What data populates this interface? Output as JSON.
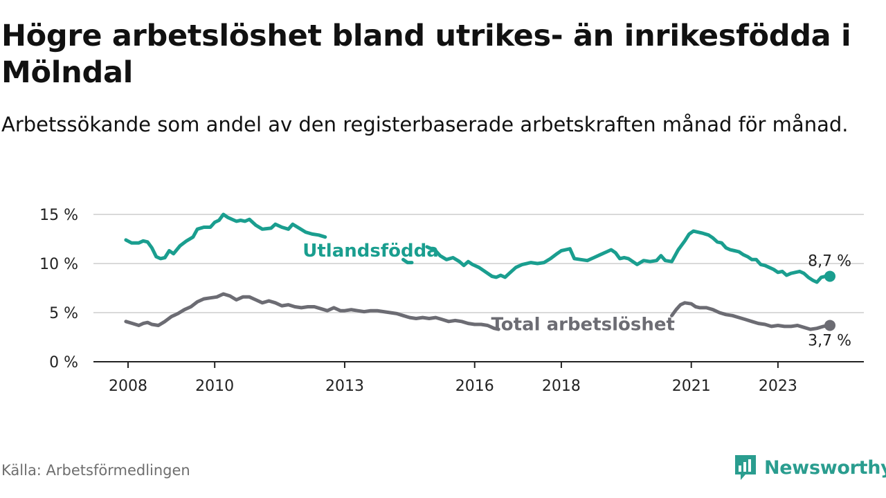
{
  "title": "Högre arbetslöshet bland utrikes- än inrikesfödda i Mölndal",
  "subtitle": "Arbetssökande som andel av den registerbaserade arbetskraften månad för månad.",
  "source": "Källa: Arbetsförmedlingen",
  "brand": {
    "name": "Newsworthy",
    "icon": "newsworthy-logo-icon",
    "color": "#2a9d8f"
  },
  "chart_data": {
    "type": "line",
    "title": "Högre arbetslöshet bland utrikes- än inrikesfödda i Mölndal",
    "xlabel": "",
    "ylabel": "",
    "ylim": [
      0,
      15
    ],
    "xlim": [
      2007.6,
      2024.3
    ],
    "grid": true,
    "y_ticks": [
      {
        "value": 0,
        "label": "0 %"
      },
      {
        "value": 5,
        "label": "5 %"
      },
      {
        "value": 10,
        "label": "10 %"
      },
      {
        "value": 15,
        "label": "15 %"
      }
    ],
    "x_ticks": [
      {
        "value": 2008,
        "label": "2008"
      },
      {
        "value": 2010,
        "label": "2010"
      },
      {
        "value": 2013,
        "label": "2013"
      },
      {
        "value": 2016,
        "label": "2016"
      },
      {
        "value": 2018,
        "label": "2018"
      },
      {
        "value": 2021,
        "label": "2021"
      },
      {
        "value": 2023,
        "label": "2023"
      }
    ],
    "series": [
      {
        "name": "Utlandsfödda",
        "color": "#1a9e8f",
        "end_label": "8,7 %",
        "points": [
          [
            2007.95,
            12.4
          ],
          [
            2008.08,
            12.1
          ],
          [
            2008.25,
            12.1
          ],
          [
            2008.35,
            12.3
          ],
          [
            2008.45,
            12.2
          ],
          [
            2008.55,
            11.6
          ],
          [
            2008.65,
            10.7
          ],
          [
            2008.75,
            10.5
          ],
          [
            2008.85,
            10.6
          ],
          [
            2008.95,
            11.3
          ],
          [
            2009.05,
            11.0
          ],
          [
            2009.2,
            11.8
          ],
          [
            2009.35,
            12.3
          ],
          [
            2009.5,
            12.7
          ],
          [
            2009.6,
            13.5
          ],
          [
            2009.75,
            13.7
          ],
          [
            2009.9,
            13.7
          ],
          [
            2010.0,
            14.2
          ],
          [
            2010.1,
            14.4
          ],
          [
            2010.2,
            15.0
          ],
          [
            2010.3,
            14.7
          ],
          [
            2010.4,
            14.5
          ],
          [
            2010.5,
            14.3
          ],
          [
            2010.6,
            14.4
          ],
          [
            2010.7,
            14.3
          ],
          [
            2010.8,
            14.5
          ],
          [
            2010.95,
            13.9
          ],
          [
            2011.1,
            13.5
          ],
          [
            2011.3,
            13.6
          ],
          [
            2011.4,
            14.0
          ],
          [
            2011.55,
            13.7
          ],
          [
            2011.7,
            13.5
          ],
          [
            2011.8,
            14.0
          ],
          [
            2011.95,
            13.6
          ],
          [
            2012.1,
            13.2
          ],
          [
            2012.25,
            13.0
          ],
          [
            2012.4,
            12.9
          ],
          [
            2012.55,
            12.7
          ],
          null,
          [
            2014.35,
            10.4
          ],
          [
            2014.45,
            10.1
          ],
          [
            2014.55,
            10.1
          ],
          null,
          [
            2014.9,
            11.7
          ],
          [
            2015.0,
            11.5
          ],
          [
            2015.1,
            11.3
          ],
          [
            2015.2,
            10.8
          ],
          [
            2015.35,
            10.4
          ],
          [
            2015.5,
            10.6
          ],
          [
            2015.65,
            10.2
          ],
          [
            2015.75,
            9.8
          ],
          [
            2015.85,
            10.2
          ],
          [
            2015.95,
            9.9
          ],
          [
            2016.1,
            9.6
          ],
          [
            2016.2,
            9.3
          ],
          [
            2016.3,
            9.0
          ],
          [
            2016.4,
            8.7
          ],
          [
            2016.5,
            8.6
          ],
          [
            2016.6,
            8.8
          ],
          [
            2016.7,
            8.6
          ],
          [
            2016.8,
            9.0
          ],
          [
            2016.95,
            9.6
          ],
          [
            2017.1,
            9.9
          ],
          [
            2017.3,
            10.1
          ],
          [
            2017.45,
            10.0
          ],
          [
            2017.6,
            10.1
          ],
          [
            2017.75,
            10.5
          ],
          [
            2017.9,
            11.0
          ],
          [
            2018.0,
            11.3
          ],
          [
            2018.1,
            11.4
          ],
          [
            2018.2,
            11.5
          ],
          [
            2018.3,
            10.5
          ],
          [
            2018.45,
            10.4
          ],
          [
            2018.6,
            10.3
          ],
          [
            2018.75,
            10.6
          ],
          [
            2018.9,
            10.9
          ],
          [
            2019.05,
            11.2
          ],
          [
            2019.15,
            11.4
          ],
          [
            2019.25,
            11.1
          ],
          [
            2019.35,
            10.5
          ],
          [
            2019.45,
            10.6
          ],
          [
            2019.55,
            10.5
          ],
          [
            2019.65,
            10.2
          ],
          [
            2019.75,
            9.9
          ],
          [
            2019.9,
            10.3
          ],
          [
            2020.05,
            10.2
          ],
          [
            2020.2,
            10.3
          ],
          [
            2020.3,
            10.8
          ],
          [
            2020.4,
            10.3
          ],
          [
            2020.55,
            10.2
          ],
          [
            2020.7,
            11.4
          ],
          [
            2020.85,
            12.3
          ],
          [
            2020.95,
            13.0
          ],
          [
            2021.05,
            13.3
          ],
          [
            2021.15,
            13.2
          ],
          [
            2021.25,
            13.1
          ],
          [
            2021.4,
            12.9
          ],
          [
            2021.5,
            12.6
          ],
          [
            2021.6,
            12.2
          ],
          [
            2021.7,
            12.1
          ],
          [
            2021.8,
            11.6
          ],
          [
            2021.9,
            11.4
          ],
          [
            2022.0,
            11.3
          ],
          [
            2022.1,
            11.2
          ],
          [
            2022.2,
            10.9
          ],
          [
            2022.3,
            10.7
          ],
          [
            2022.4,
            10.4
          ],
          [
            2022.5,
            10.4
          ],
          [
            2022.6,
            9.9
          ],
          [
            2022.7,
            9.8
          ],
          [
            2022.8,
            9.6
          ],
          [
            2022.9,
            9.4
          ],
          [
            2023.0,
            9.1
          ],
          [
            2023.1,
            9.2
          ],
          [
            2023.2,
            8.8
          ],
          [
            2023.3,
            9.0
          ],
          [
            2023.4,
            9.1
          ],
          [
            2023.5,
            9.2
          ],
          [
            2023.6,
            9.0
          ],
          [
            2023.7,
            8.6
          ],
          [
            2023.8,
            8.3
          ],
          [
            2023.9,
            8.1
          ],
          [
            2024.0,
            8.6
          ],
          [
            2024.1,
            8.7
          ],
          [
            2024.2,
            8.7
          ]
        ]
      },
      {
        "name": "Total arbetslöshet",
        "color": "#6c6c73",
        "end_label": "3,7 %",
        "points": [
          [
            2007.95,
            4.1
          ],
          [
            2008.1,
            3.9
          ],
          [
            2008.25,
            3.7
          ],
          [
            2008.35,
            3.9
          ],
          [
            2008.45,
            4.0
          ],
          [
            2008.55,
            3.8
          ],
          [
            2008.7,
            3.7
          ],
          [
            2008.85,
            4.1
          ],
          [
            2009.0,
            4.6
          ],
          [
            2009.15,
            4.9
          ],
          [
            2009.3,
            5.3
          ],
          [
            2009.45,
            5.6
          ],
          [
            2009.6,
            6.1
          ],
          [
            2009.75,
            6.4
          ],
          [
            2009.9,
            6.5
          ],
          [
            2010.05,
            6.6
          ],
          [
            2010.2,
            6.9
          ],
          [
            2010.35,
            6.7
          ],
          [
            2010.5,
            6.3
          ],
          [
            2010.65,
            6.6
          ],
          [
            2010.8,
            6.6
          ],
          [
            2010.95,
            6.3
          ],
          [
            2011.1,
            6.0
          ],
          [
            2011.25,
            6.2
          ],
          [
            2011.4,
            6.0
          ],
          [
            2011.55,
            5.7
          ],
          [
            2011.7,
            5.8
          ],
          [
            2011.85,
            5.6
          ],
          [
            2012.0,
            5.5
          ],
          [
            2012.15,
            5.6
          ],
          [
            2012.3,
            5.6
          ],
          [
            2012.45,
            5.4
          ],
          [
            2012.6,
            5.2
          ],
          [
            2012.75,
            5.5
          ],
          [
            2012.9,
            5.2
          ],
          [
            2013.0,
            5.2
          ],
          [
            2013.15,
            5.3
          ],
          [
            2013.3,
            5.2
          ],
          [
            2013.45,
            5.1
          ],
          [
            2013.6,
            5.2
          ],
          [
            2013.75,
            5.2
          ],
          [
            2013.9,
            5.1
          ],
          [
            2014.05,
            5.0
          ],
          [
            2014.2,
            4.9
          ],
          [
            2014.35,
            4.7
          ],
          [
            2014.5,
            4.5
          ],
          [
            2014.65,
            4.4
          ],
          [
            2014.8,
            4.5
          ],
          [
            2014.95,
            4.4
          ],
          [
            2015.1,
            4.5
          ],
          [
            2015.25,
            4.3
          ],
          [
            2015.4,
            4.1
          ],
          [
            2015.55,
            4.2
          ],
          [
            2015.7,
            4.1
          ],
          [
            2015.85,
            3.9
          ],
          [
            2016.0,
            3.8
          ],
          [
            2016.15,
            3.8
          ],
          [
            2016.3,
            3.7
          ],
          [
            2016.45,
            3.4
          ],
          [
            2016.55,
            3.3
          ],
          null,
          [
            2020.55,
            4.7
          ],
          [
            2020.65,
            5.3
          ],
          [
            2020.75,
            5.8
          ],
          [
            2020.85,
            6.0
          ],
          [
            2021.0,
            5.9
          ],
          [
            2021.1,
            5.6
          ],
          [
            2021.2,
            5.5
          ],
          [
            2021.35,
            5.5
          ],
          [
            2021.5,
            5.3
          ],
          [
            2021.65,
            5.0
          ],
          [
            2021.8,
            4.8
          ],
          [
            2021.95,
            4.7
          ],
          [
            2022.1,
            4.5
          ],
          [
            2022.25,
            4.3
          ],
          [
            2022.4,
            4.1
          ],
          [
            2022.55,
            3.9
          ],
          [
            2022.7,
            3.8
          ],
          [
            2022.85,
            3.6
          ],
          [
            2023.0,
            3.7
          ],
          [
            2023.15,
            3.6
          ],
          [
            2023.3,
            3.6
          ],
          [
            2023.45,
            3.7
          ],
          [
            2023.6,
            3.5
          ],
          [
            2023.75,
            3.3
          ],
          [
            2023.9,
            3.4
          ],
          [
            2024.05,
            3.6
          ],
          [
            2024.2,
            3.7
          ]
        ]
      }
    ],
    "annotations": [
      {
        "text": "Utlandsfödda",
        "series": "Utlandsfödda",
        "x": 2013.6,
        "y": 11.4
      },
      {
        "text": "Total arbetslöshet",
        "series": "Total arbetslöshet",
        "x": 2018.5,
        "y": 3.9
      }
    ]
  }
}
